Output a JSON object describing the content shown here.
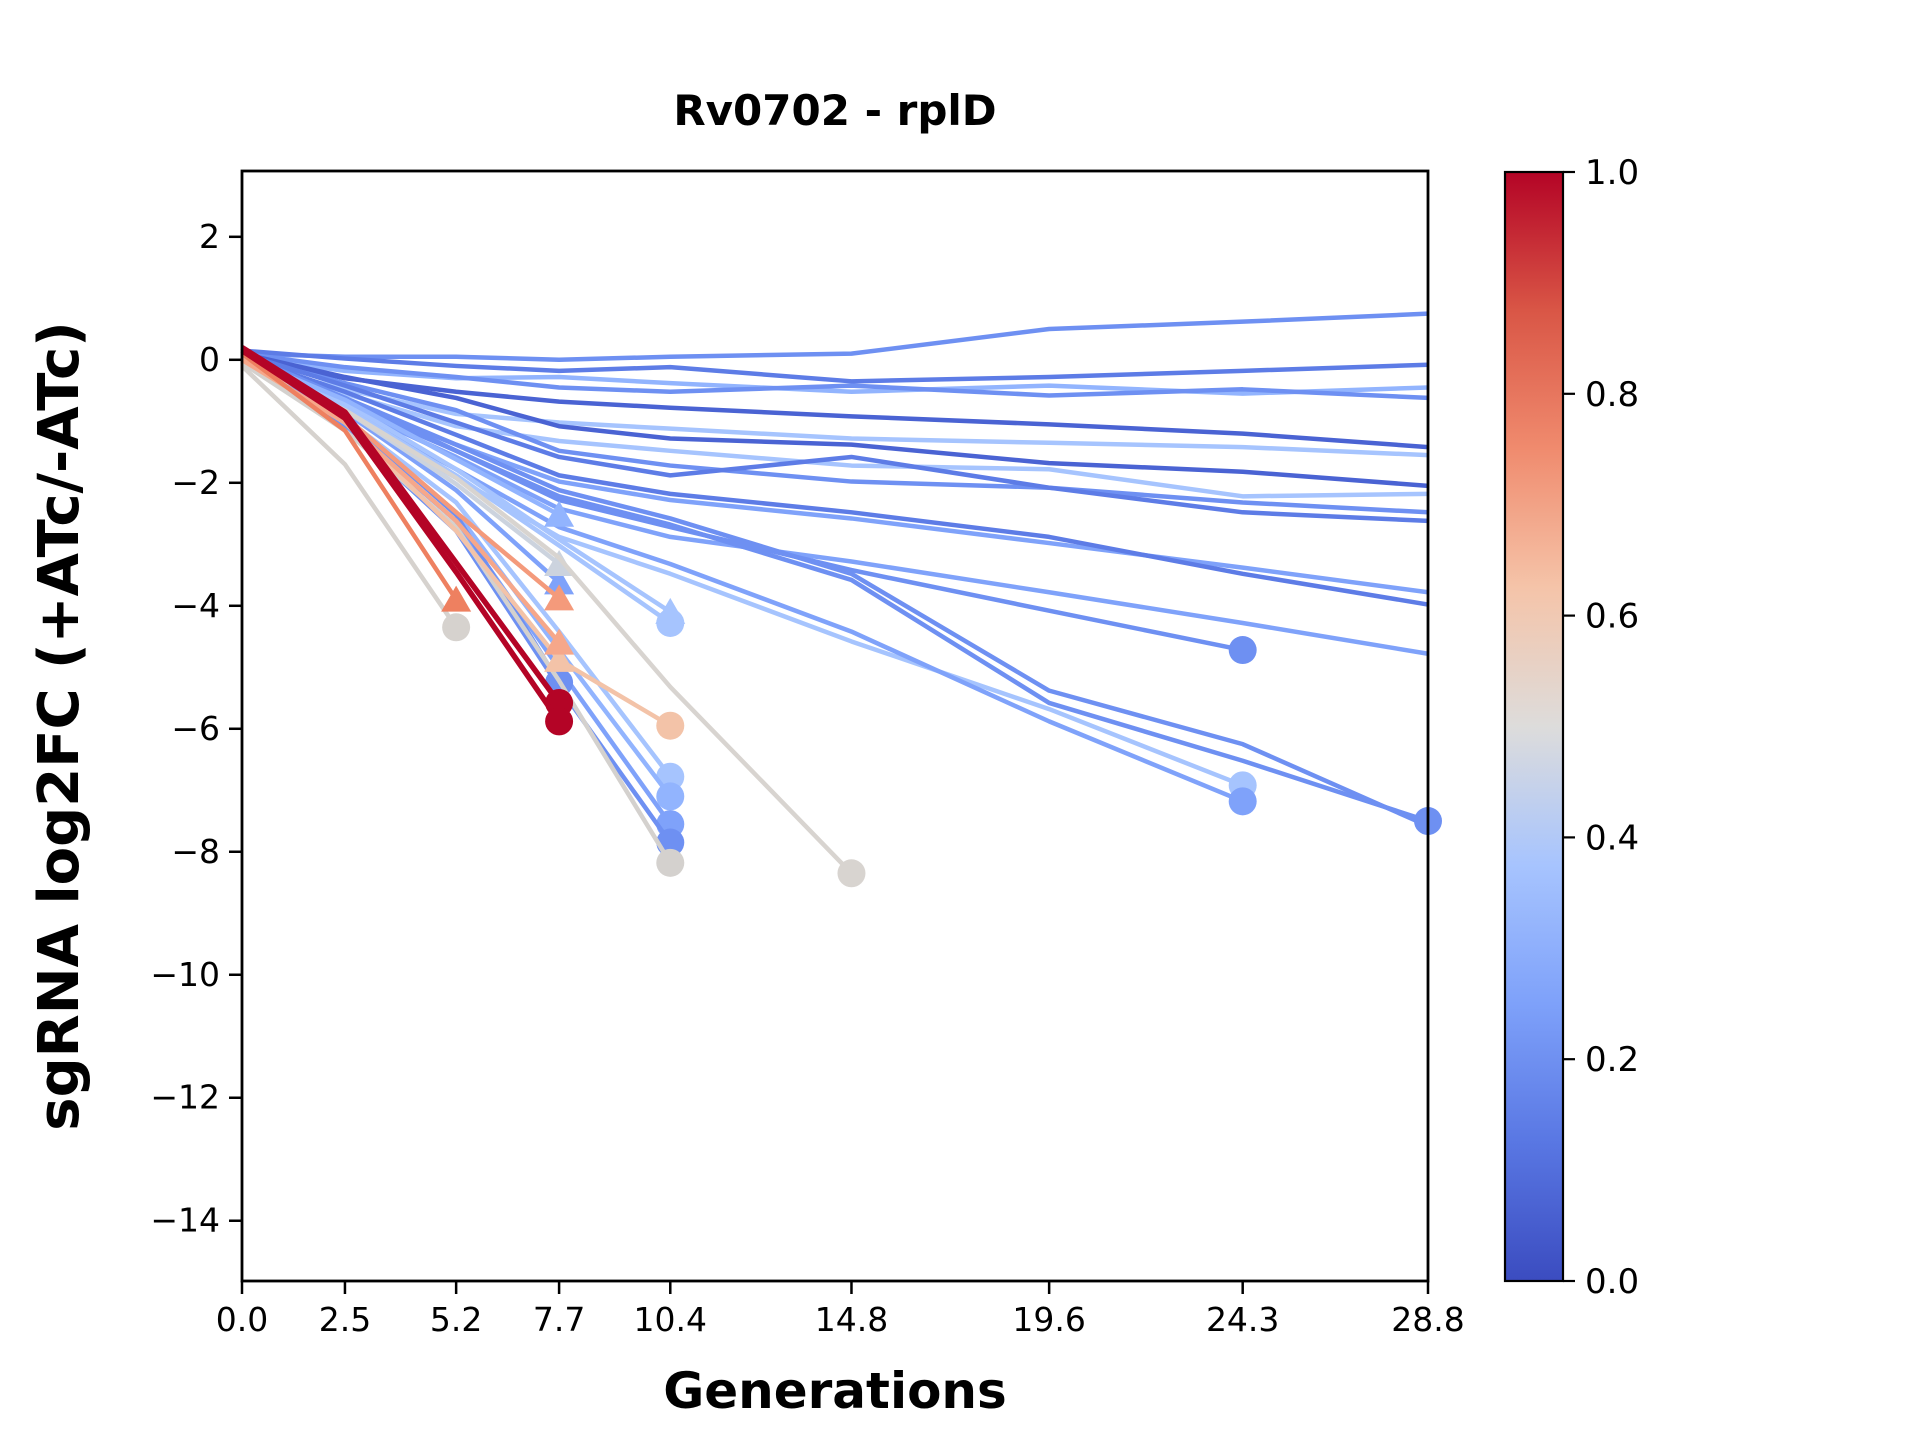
{
  "chart_data": {
    "type": "line",
    "title": "Rv0702 - rplD",
    "xlabel": "Generations",
    "ylabel": "sgRNA log2FC (+ATc/-ATc)",
    "xlim": [
      0,
      28.8
    ],
    "ylim": [
      -14.98,
      3.07
    ],
    "grid": false,
    "x_ticks": {
      "labels": [
        "0.0",
        "2.5",
        "5.2",
        "7.7",
        "10.4",
        "14.8",
        "19.6",
        "24.3",
        "28.8"
      ],
      "values": [
        0,
        2.5,
        5.2,
        7.7,
        10.4,
        14.8,
        19.6,
        24.3,
        28.8
      ]
    },
    "y_ticks": {
      "labels": [
        "2",
        "0",
        "−2",
        "−4",
        "−6",
        "−8",
        "−10",
        "−12",
        "−14"
      ],
      "values": [
        2,
        0,
        -2,
        -4,
        -6,
        -8,
        -10,
        -12,
        -14
      ]
    },
    "timepoints": [
      0,
      2.5,
      5.2,
      7.7,
      10.4,
      14.8,
      19.6,
      24.3,
      28.8
    ],
    "colorbar": {
      "labels": [
        "0.0",
        "0.2",
        "0.4",
        "0.6",
        "0.8",
        "1.0"
      ],
      "values": [
        0,
        0.2,
        0.4,
        0.6,
        0.8,
        1.0
      ],
      "colormap": "coolwarm",
      "gradient": [
        {
          "offset": 0.0,
          "color": "#3b4cc0"
        },
        {
          "offset": 0.125,
          "color": "#5977e3"
        },
        {
          "offset": 0.25,
          "color": "#7ea1fa"
        },
        {
          "offset": 0.375,
          "color": "#a7c4fe"
        },
        {
          "offset": 0.5,
          "color": "#dddcdb"
        },
        {
          "offset": 0.625,
          "color": "#f5c4a9"
        },
        {
          "offset": 0.75,
          "color": "#f08b6e"
        },
        {
          "offset": 0.875,
          "color": "#d95646"
        },
        {
          "offset": 1.0,
          "color": "#b40426"
        }
      ]
    },
    "series": [
      {
        "color": "#6e90f2",
        "y": [
          0.1,
          0.05,
          0.05,
          0.0,
          0.05,
          0.1,
          0.5,
          0.62,
          0.75
        ],
        "markers": []
      },
      {
        "color": "#5d7ce6",
        "y": [
          0.15,
          0.02,
          -0.1,
          -0.18,
          -0.12,
          -0.35,
          -0.28,
          -0.18,
          -0.08
        ],
        "markers": []
      },
      {
        "color": "#92b4fe",
        "y": [
          0.05,
          -0.18,
          -0.3,
          -0.28,
          -0.38,
          -0.52,
          -0.42,
          -0.55,
          -0.45
        ],
        "markers": []
      },
      {
        "color": "#6e90f2",
        "y": [
          0.1,
          -0.12,
          -0.28,
          -0.45,
          -0.52,
          -0.42,
          -0.58,
          -0.48,
          -0.62
        ],
        "markers": []
      },
      {
        "color": "#4a63d3",
        "y": [
          0.05,
          -0.3,
          -0.52,
          -0.68,
          -0.78,
          -0.92,
          -1.05,
          -1.2,
          -1.42
        ],
        "markers": []
      },
      {
        "color": "#a6c4fe",
        "y": [
          -0.05,
          -0.48,
          -0.88,
          -1.02,
          -1.12,
          -1.28,
          -1.35,
          -1.42,
          -1.55
        ],
        "markers": []
      },
      {
        "color": "#4a63d3",
        "y": [
          0.1,
          -0.28,
          -0.62,
          -1.08,
          -1.28,
          -1.38,
          -1.68,
          -1.82,
          -2.05
        ],
        "markers": []
      },
      {
        "color": "#a6c4fe",
        "y": [
          0.0,
          -0.55,
          -1.08,
          -1.32,
          -1.48,
          -1.72,
          -1.78,
          -2.22,
          -2.18
        ],
        "markers": []
      },
      {
        "color": "#6e90f2",
        "y": [
          0.05,
          -0.38,
          -0.82,
          -1.48,
          -1.72,
          -1.98,
          -2.08,
          -2.32,
          -2.48
        ],
        "markers": []
      },
      {
        "color": "#5d7ce6",
        "y": [
          0.1,
          -0.42,
          -1.02,
          -1.58,
          -1.88,
          -1.58,
          -2.08,
          -2.48,
          -2.62
        ],
        "markers": []
      },
      {
        "color": "#7fa2fa",
        "y": [
          0.0,
          -0.65,
          -1.38,
          -1.98,
          -2.28,
          -2.58,
          -2.98,
          -3.38,
          -3.78
        ],
        "markers": []
      },
      {
        "color": "#5d7ce6",
        "y": [
          0.05,
          -0.52,
          -1.22,
          -1.88,
          -2.18,
          -2.48,
          -2.88,
          -3.48,
          -3.98
        ],
        "markers": []
      },
      {
        "color": "#7fa2fa",
        "y": [
          0.0,
          -0.75,
          -1.58,
          -2.42,
          -2.88,
          -3.28,
          -3.78,
          -4.28,
          -4.78
        ],
        "markers": []
      },
      {
        "color": "#6e90f2",
        "y": [
          0.1,
          -0.62,
          -1.38,
          -2.12,
          -2.58,
          -3.48,
          -5.38,
          -6.25,
          -7.58
        ],
        "markers": []
      },
      {
        "color": "#6e90f2",
        "y": [
          0.05,
          -0.7,
          -1.48,
          -2.22,
          -2.68,
          -3.58,
          -5.58,
          -6.52,
          -7.5
        ],
        "markers": [
          {
            "x": 28.8,
            "y": -7.5,
            "t": "circle"
          }
        ]
      },
      {
        "color": "#6e90f2",
        "y": [
          0.05,
          -0.62,
          -1.48,
          -2.28,
          -2.72,
          -3.42,
          -4.08,
          -4.72
        ],
        "markers": [
          {
            "x": 24.3,
            "y": -4.72,
            "t": "circle"
          }
        ]
      },
      {
        "color": "#a6c4fe",
        "y": [
          0.0,
          -0.88,
          -1.92,
          -2.88,
          -3.48,
          -4.58,
          -5.68,
          -6.92
        ],
        "markers": [
          {
            "x": 24.3,
            "y": -6.92,
            "t": "circle"
          }
        ]
      },
      {
        "color": "#7fa2fa",
        "y": [
          0.05,
          -0.78,
          -1.78,
          -2.72,
          -3.32,
          -4.42,
          -5.88,
          -7.18
        ],
        "markers": [
          {
            "x": 24.3,
            "y": -7.18,
            "t": "circle"
          }
        ]
      },
      {
        "color": "#a6c4fe",
        "y": [
          0.0,
          -0.7,
          -1.78,
          -2.92,
          -4.1
        ],
        "markers": [
          {
            "x": 10.4,
            "y": -4.1,
            "t": "triangle"
          }
        ]
      },
      {
        "color": "#a6c4fe",
        "y": [
          0.05,
          -0.78,
          -1.88,
          -3.02,
          -4.28
        ],
        "markers": [
          {
            "x": 10.4,
            "y": -4.28,
            "t": "circle"
          }
        ]
      },
      {
        "color": "#a6c4fe",
        "y": [
          0.0,
          -0.95,
          -2.32,
          -4.42,
          -6.78
        ],
        "markers": [
          {
            "x": 10.4,
            "y": -6.78,
            "t": "circle"
          }
        ]
      },
      {
        "color": "#92b4fe",
        "y": [
          0.05,
          -1.0,
          -2.48,
          -4.72,
          -7.1
        ],
        "markers": [
          {
            "x": 10.4,
            "y": -7.1,
            "t": "circle"
          }
        ]
      },
      {
        "color": "#7fa2fa",
        "y": [
          0.0,
          -1.05,
          -2.62,
          -5.02,
          -7.55
        ],
        "markers": [
          {
            "x": 10.4,
            "y": -7.55,
            "t": "circle"
          }
        ]
      },
      {
        "color": "#6e90f2",
        "y": [
          0.05,
          -1.12,
          -2.78,
          -5.32,
          -7.85
        ],
        "markers": [
          {
            "x": 10.4,
            "y": -7.85,
            "t": "circle"
          }
        ]
      },
      {
        "color": "#92b4fe",
        "y": [
          0.05,
          -0.65,
          -1.62,
          -2.52
        ],
        "markers": [
          {
            "x": 7.7,
            "y": -2.52,
            "t": "triangle"
          }
        ]
      },
      {
        "color": "#7fa2fa",
        "y": [
          0.05,
          -0.85,
          -2.12,
          -3.62
        ],
        "markers": [
          {
            "x": 7.7,
            "y": -3.62,
            "t": "triangle"
          }
        ]
      },
      {
        "color": "#6e90f2",
        "y": [
          0.0,
          -0.92,
          -2.52,
          -5.25
        ],
        "markers": [
          {
            "x": 7.7,
            "y": -5.25,
            "t": "circle"
          }
        ]
      },
      {
        "color": "#ccd3de",
        "y": [
          0.0,
          -0.82,
          -2.02,
          -3.32
        ],
        "markers": [
          {
            "x": 7.7,
            "y": -3.32,
            "t": "triangle"
          }
        ]
      },
      {
        "color": "#d6d2ce",
        "y": [
          -0.1,
          -1.7,
          -4.35
        ],
        "markers": [
          {
            "x": 5.2,
            "y": -4.35,
            "t": "circle"
          }
        ]
      },
      {
        "color": "#d8d4d0",
        "y": [
          0.0,
          -0.82,
          -1.92,
          -3.22,
          -5.32,
          -8.35
        ],
        "markers": [
          {
            "x": 14.8,
            "y": -8.35,
            "t": "circle"
          }
        ]
      },
      {
        "color": "#d4d1ce",
        "y": [
          -0.05,
          -1.15,
          -2.72,
          -5.22,
          -8.18
        ],
        "markers": [
          {
            "x": 10.4,
            "y": -8.18,
            "t": "circle"
          }
        ]
      },
      {
        "color": "#f3c3a8",
        "y": [
          0.0,
          -1.02,
          -2.78,
          -4.88,
          -5.95
        ],
        "markers": [
          {
            "x": 7.7,
            "y": -4.88,
            "t": "triangle"
          },
          {
            "x": 10.4,
            "y": -5.95,
            "t": "circle"
          }
        ]
      },
      {
        "color": "#f49a7b",
        "y": [
          0.1,
          -0.92,
          -2.48,
          -3.88
        ],
        "markers": [
          {
            "x": 7.7,
            "y": -3.88,
            "t": "triangle"
          }
        ]
      },
      {
        "color": "#f6a78a",
        "y": [
          0.0,
          -1.02,
          -2.62,
          -4.6
        ],
        "markers": [
          {
            "x": 7.7,
            "y": -4.6,
            "t": "triangle"
          }
        ]
      },
      {
        "color": "#ee8060",
        "y": [
          0.1,
          -1.15,
          -3.9
        ],
        "markers": [
          {
            "x": 5.2,
            "y": -3.9,
            "t": "triangle"
          }
        ]
      },
      {
        "color": "#b40426",
        "lw": 5.5,
        "y": [
          0.2,
          -0.85,
          -3.3,
          -5.58
        ],
        "markers": [
          {
            "x": 7.7,
            "y": -5.58,
            "t": "circle"
          }
        ]
      },
      {
        "color": "#b40426",
        "lw": 5.5,
        "y": [
          0.15,
          -0.95,
          -3.45,
          -5.88
        ],
        "markers": [
          {
            "x": 7.7,
            "y": -5.88,
            "t": "circle"
          }
        ]
      }
    ]
  }
}
